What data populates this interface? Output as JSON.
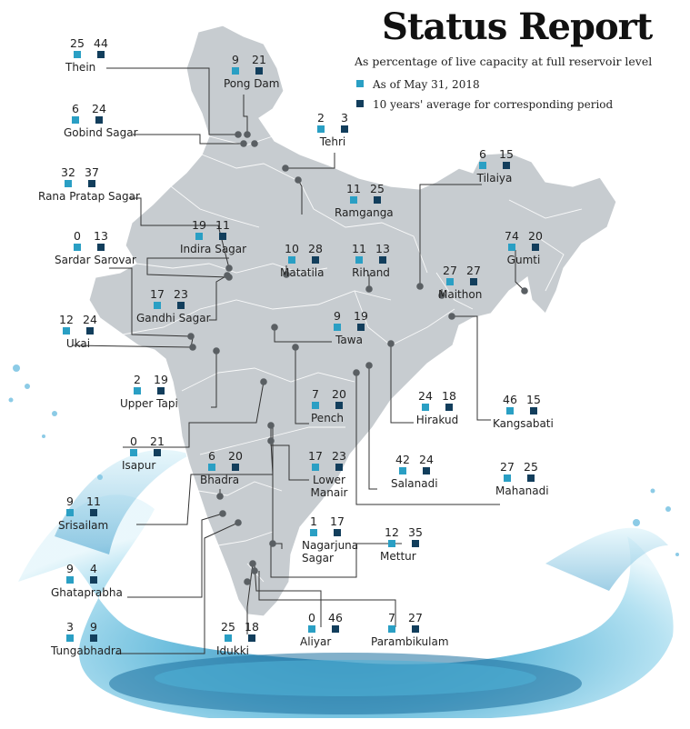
{
  "title": "Status Report",
  "subtitle": "As percentage of live capacity at full reservoir level",
  "colors": {
    "current": "#2a9fc4",
    "average": "#123e5c",
    "land": "#c9ced2",
    "water": "#3fa3c9"
  },
  "legend": {
    "current": "As of May 31, 2018",
    "average": "10 years' average for corresponding period"
  },
  "dams": [
    {
      "name": "Thein",
      "current": "25",
      "average": "44"
    },
    {
      "name": "Pong Dam",
      "current": "9",
      "average": "21"
    },
    {
      "name": "Gobind Sagar",
      "current": "6",
      "average": "24"
    },
    {
      "name": "Tehri",
      "current": "2",
      "average": "3"
    },
    {
      "name": "Tilaiya",
      "current": "6",
      "average": "15"
    },
    {
      "name": "Rana Pratap Sagar",
      "current": "32",
      "average": "37"
    },
    {
      "name": "Ramganga",
      "current": "11",
      "average": "25"
    },
    {
      "name": "Indira Sagar",
      "current": "19",
      "average": "11"
    },
    {
      "name": "Sardar Sarovar",
      "current": "0",
      "average": "13"
    },
    {
      "name": "Matatila",
      "current": "10",
      "average": "28"
    },
    {
      "name": "Rihand",
      "current": "11",
      "average": "13"
    },
    {
      "name": "Gumti",
      "current": "74",
      "average": "20"
    },
    {
      "name": "Maithon",
      "current": "27",
      "average": "27"
    },
    {
      "name": "Gandhi Sagar",
      "current": "17",
      "average": "23"
    },
    {
      "name": "Ukai",
      "current": "12",
      "average": "24"
    },
    {
      "name": "Tawa",
      "current": "9",
      "average": "19"
    },
    {
      "name": "Upper Tapi",
      "current": "2",
      "average": "19"
    },
    {
      "name": "Pench",
      "current": "7",
      "average": "20"
    },
    {
      "name": "Hirakud",
      "current": "24",
      "average": "18"
    },
    {
      "name": "Kangsabati",
      "current": "46",
      "average": "15"
    },
    {
      "name": "Isapur",
      "current": "0",
      "average": "21"
    },
    {
      "name": "Bhadra",
      "current": "6",
      "average": "20"
    },
    {
      "name": "Lower Manair",
      "current": "17",
      "average": "23"
    },
    {
      "name": "Salanadi",
      "current": "42",
      "average": "24"
    },
    {
      "name": "Mahanadi",
      "current": "27",
      "average": "25"
    },
    {
      "name": "Srisailam",
      "current": "9",
      "average": "11"
    },
    {
      "name": "Nagarjuna Sagar",
      "current": "1",
      "average": "17"
    },
    {
      "name": "Mettur",
      "current": "12",
      "average": "35"
    },
    {
      "name": "Ghataprabha",
      "current": "9",
      "average": "4"
    },
    {
      "name": "Tungabhadra",
      "current": "3",
      "average": "9"
    },
    {
      "name": "Idukki",
      "current": "25",
      "average": "18"
    },
    {
      "name": "Aliyar",
      "current": "0",
      "average": "46"
    },
    {
      "name": "Parambikulam",
      "current": "7",
      "average": "27"
    }
  ]
}
